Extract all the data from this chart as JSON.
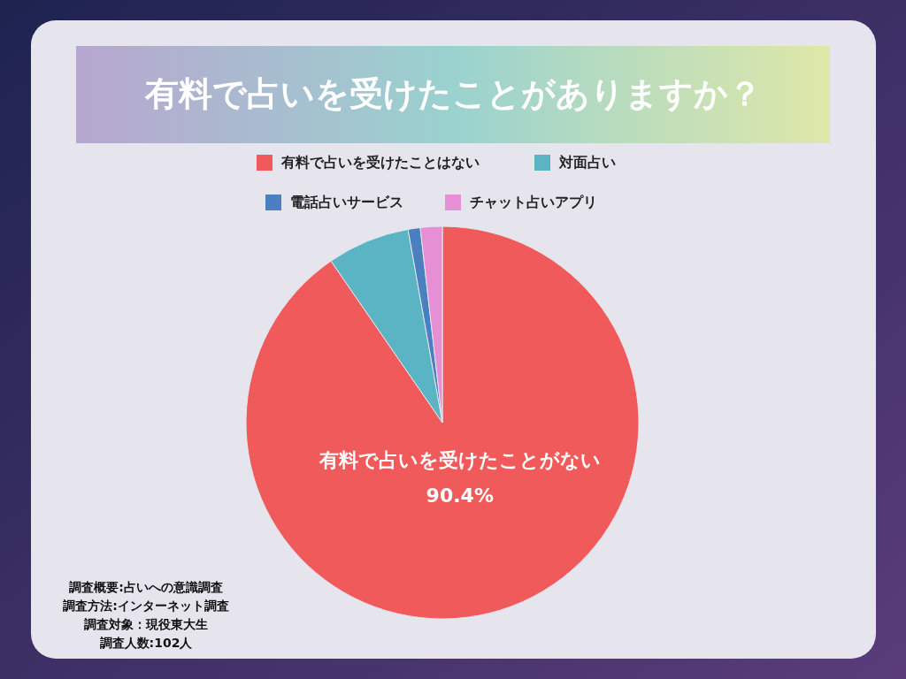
{
  "chart_data": {
    "type": "pie",
    "title": "有料で占いを受けたことがありますか？",
    "categories": [
      "有料で占いを受けたことはない",
      "対面占い",
      "電話占いサービス",
      "チャット占いアプリ"
    ],
    "values": [
      90.4,
      6.8,
      1.0,
      1.8
    ],
    "colors": [
      "#f05a5a",
      "#5ab4c4",
      "#4a7fc0",
      "#e68fd4"
    ],
    "value_labels": [
      "90.4%",
      null,
      null,
      null
    ],
    "legend": "top",
    "annotations": [
      {
        "text": "有料で占いを受けたことがない",
        "x": "有料で占いを受けたことはない"
      },
      "調査概要:占いへの意識調査",
      "調査方法:インターネット調査",
      "調査対象：現役東大生",
      "調査人数:102人"
    ]
  }
}
